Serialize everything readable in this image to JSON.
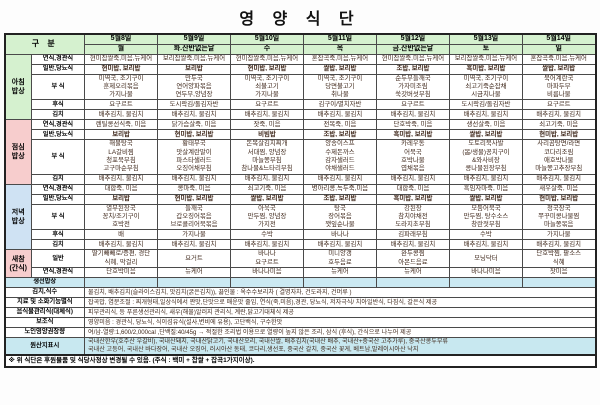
{
  "title": "영 양 식 단",
  "header": {
    "gubun": "구 분",
    "days": [
      {
        "date": "5월8일",
        "day": "월"
      },
      {
        "date": "5월9일",
        "day": "화.잔반없는날"
      },
      {
        "date": "5월10일",
        "day": "수"
      },
      {
        "date": "5월11일",
        "day": "목"
      },
      {
        "date": "5월12일",
        "day": "금.잔반없는날"
      },
      {
        "date": "5월13일",
        "day": "토"
      },
      {
        "date": "5월14일",
        "day": "일"
      }
    ]
  },
  "colors": {
    "header_green": "#d5f1cf",
    "breakfast": "#d5f1cf",
    "lunch": "#f7cdcd",
    "dinner": "#cfe2f3",
    "snack": "#f7cdcd",
    "fish_row": "#cbe9f2",
    "origin_row": "#c8e8f0",
    "menu_text": "#40291c"
  },
  "meals": [
    {
      "label": "아침\n밥상",
      "color": "#d5f1cf",
      "rows": [
        {
          "label": "연식,경관식",
          "bold": false,
          "cells": [
            "현미찹쌀죽,미음,뉴케어",
            "보리찹쌀죽,미음,뉴케어",
            "현미찹쌀죽,미음,뉴케어",
            "혼잡곡죽,미음,뉴케어",
            "현미찹쌀죽,미음,뉴케어",
            "보리찹쌀죽,미음,뉴케어",
            "혼잡곡죽,미음,뉴케어"
          ]
        },
        {
          "label": "일반,당뇨식",
          "bold": true,
          "cells": [
            "현미밥, 보리밥",
            "보리밥",
            "현미밥, 보리밥",
            "쌀밥, 보리밥",
            "조밥, 보리밥",
            "흑미밥, 보리밥",
            "쌀밥, 보리밥"
          ]
        },
        {
          "label": "부\n식",
          "bold": false,
          "cells": [
            "미역국, 조기구이\n훈제오리볶음\n가지나물",
            "만두국\n연어양파볶음\n연두부,양념장",
            "미역국, 조기구이\n쇠불고기\n가지나물",
            "미역국, 조기구이\n당면불고기\n취나물",
            "순두부들깨국\n가자미조림\n쑥갓버섯무침",
            "미역국, 조기구이\n쇠고기죽순잡채\n시금치나물",
            "북어계란국\n마파두부\n비름나물"
          ]
        },
        {
          "label": "후식",
          "bold": false,
          "cells": [
            "요구르트",
            "도시락김/돌김자반",
            "요구르트",
            "김구이/멸치자반",
            "요구르트",
            "도시락김/돌김자반",
            "요구르트"
          ]
        },
        {
          "label": "김치",
          "bold": false,
          "cells": [
            "배추김치, 물김치",
            "배추김치, 물김치",
            "배추김치, 물김치",
            "배추김치, 물김치",
            "배추김치, 물김치",
            "배추김치, 물김치",
            "배추김치, 물김치"
          ]
        }
      ]
    },
    {
      "label": "점심\n밥상",
      "color": "#f7cdcd",
      "rows": [
        {
          "label": "연식,경관식",
          "bold": false,
          "cells": [
            "렌틸콩선식죽, 미음",
            "닭가슴살죽, 미음",
            "잣죽, 미음",
            "전복죽, 미음",
            "단호박죽, 미음",
            "생선살죽, 미음",
            "쇠고기죽, 미음"
          ]
        },
        {
          "label": "일반,당뇨식",
          "bold": true,
          "cells": [
            "보리밥",
            "현미밥, 보리밥",
            "비빔밥",
            "조밥, 보리밥",
            "흑미밥, 보리밥",
            "쌀밥, 보리밥",
            "현미밥, 보리밥"
          ]
        },
        {
          "label": "부\n식",
          "bold": false,
          "cells": [
            "해물탕국\nLA갈비찜\n청포묵무침\n고구마순무침",
            "황태무국\n맛살계란말이\n파스타샐러드\n오징어채무침",
            "돈목살김치찌개\n서대찜, 양념장\n마늘쫑무침\n참나물&느타리무침",
            "양송이스프\n수제돈까스\n감자샐러드\n야채샐러드",
            "카레우동\n어묵국\n호박나물\n엽채볶음",
            "도토리묵사발\n(봄/생물)꽁치구이\n&와사비장\n콩나물된장무침",
            "사리곰탕면/라면\n코다리조림\n애호박나물\n마늘쫑고추장무침"
          ]
        },
        {
          "label": "김치",
          "bold": false,
          "cells": [
            "배추김치, 물김치",
            "배추김치, 물김치",
            "배추김치, 물김치",
            "배추김치, 물김치",
            "배추김치, 물김치",
            "배추김치, 물김치",
            "배추김치, 물김치"
          ]
        }
      ]
    },
    {
      "label": "저녁\n밥상",
      "color": "#cfe2f3",
      "rows": [
        {
          "label": "연식,경관식",
          "bold": false,
          "cells": [
            "대합죽, 미음",
            "콩마죽, 미음",
            "쇠고기죽, 미음",
            "병아리콩,녹두죽,미음",
            "대합죽, 미음",
            "흑임자마죽, 미음",
            "새우살죽, 미음"
          ]
        },
        {
          "label": "일반,당뇨식",
          "bold": true,
          "cells": [
            "보리밥",
            "현미밥, 보리밥",
            "쌀밥, 보리밥",
            "조밥, 보리밥",
            "흑미밥, 보리밥",
            "쌀밥, 보리밥",
            "현미밥, 보리밥"
          ]
        },
        {
          "label": "부\n식",
          "bold": false,
          "cells": [
            "열무된장국\n꽁치/조기구이\n호박전",
            "들깨국\n갑오징어볶음\n브로콜리어묵볶음",
            "아욱국\n만두찜, 양념장\n가지전",
            "탕국\n장어볶음\n깻잎순나물",
            "강된장\n참치야채전\n도라지초무침",
            "모둠어묵국\n만두찜, 탕수소스\n창란젓무침",
            "청국장국\n쭈꾸미콩나물찜\n마늘쫑볶음"
          ]
        },
        {
          "label": "후식",
          "bold": false,
          "cells": [
            "배",
            "가지나물",
            "수박",
            "바나나",
            "김파래무침",
            "수박",
            "가지나물"
          ]
        },
        {
          "label": "김치",
          "bold": false,
          "cells": [
            "배추김치, 물김치",
            "배추김치, 물김치",
            "배추김치, 물김치",
            "배추김치, 물김치",
            "배추김치, 물김치",
            "배추김치, 물김치",
            "배추김치, 물김치"
          ]
        }
      ]
    },
    {
      "label": "새참\n(간식)",
      "color": "#f7cdcd",
      "rows": [
        {
          "label": "일반",
          "bold": false,
          "cells": [
            "딸기빼빼로/증편, 경단\n식혜, 막걸리",
            "요거트",
            "바나나\n요구르트",
            "미니양갱\n호두음료",
            "완두콩찜\n아몬드음료",
            "모닝닥터",
            "단호박찜, 팥소스\n식혜"
          ]
        },
        {
          "label": "연식,경관식",
          "bold": false,
          "cells": [
            "단호박미음",
            "뉴케어",
            "바나나미음",
            "뉴케어",
            "뉴케어",
            "바나나미음",
            "잣미음"
          ]
        }
      ]
    }
  ],
  "fish_row_label": "생선밥상",
  "bottom_rows": [
    {
      "label": "김치,식수",
      "text": "물김치, 배추김치(슬라이스김치, 맛김치(굵은김치)), 끓인물 : 옥수수보리차 ( 결명자차, 건도라지, 건머루 )",
      "origin": false
    },
    {
      "label": "치료 및 소화기능별식",
      "text": "잡곡밥, 염분조절 : 찌개형태,일상식에서 짠맛,단맛으로 매운맛 줄임, 연식(죽,미음),경관, 당뇨식, 저자극식/ 치아일반식, 다짐식, 갈은식 제공",
      "origin": false
    },
    {
      "label": "음식물관리식(대체식)",
      "text": "피부관리식, 등 푸른생선관리식, 새우(해물)알러지 관리식, 계란,닭고기대체식 제공",
      "origin": false
    },
    {
      "label": "보조식",
      "text": "영양미음 : 경관식, 당뇨식, 식이섬유식(설사,변비에 유용), 고단백식, 구수한맛",
      "origin": false
    },
    {
      "label": "노인영양권장량",
      "text": "여/남-열량:1,600/2,000cal ,단백질:40/45g → 적절한 조리법 이용으로 열량이 높지 않은 조리, 삼식 (후식), 간식으로 나누어 제공",
      "origin": false
    },
    {
      "label": "원산지표시",
      "text": "국내산한우(호주산 우갈비), 국내산돼지, 국내산닭고기, 국내산오리, 국내산쌀, 배추김치(국내산 배추, 국내산+중국산 고추가루), 중국산콩두부류\n국내산 고등어, 국내산 바다장어, 국내산 오징어, 러시아산 동태, 코다리,생선포, 중국산 갈치, 중국산 꽃게, 베트남,말레이시아산 낙지",
      "origin": true
    }
  ],
  "footnote": "※ 위 식단은 후원물품 및 식당사정상 변경될 수 있음. (주식 : 백미 + 찹쌀 + 잡곡1가지이상)."
}
